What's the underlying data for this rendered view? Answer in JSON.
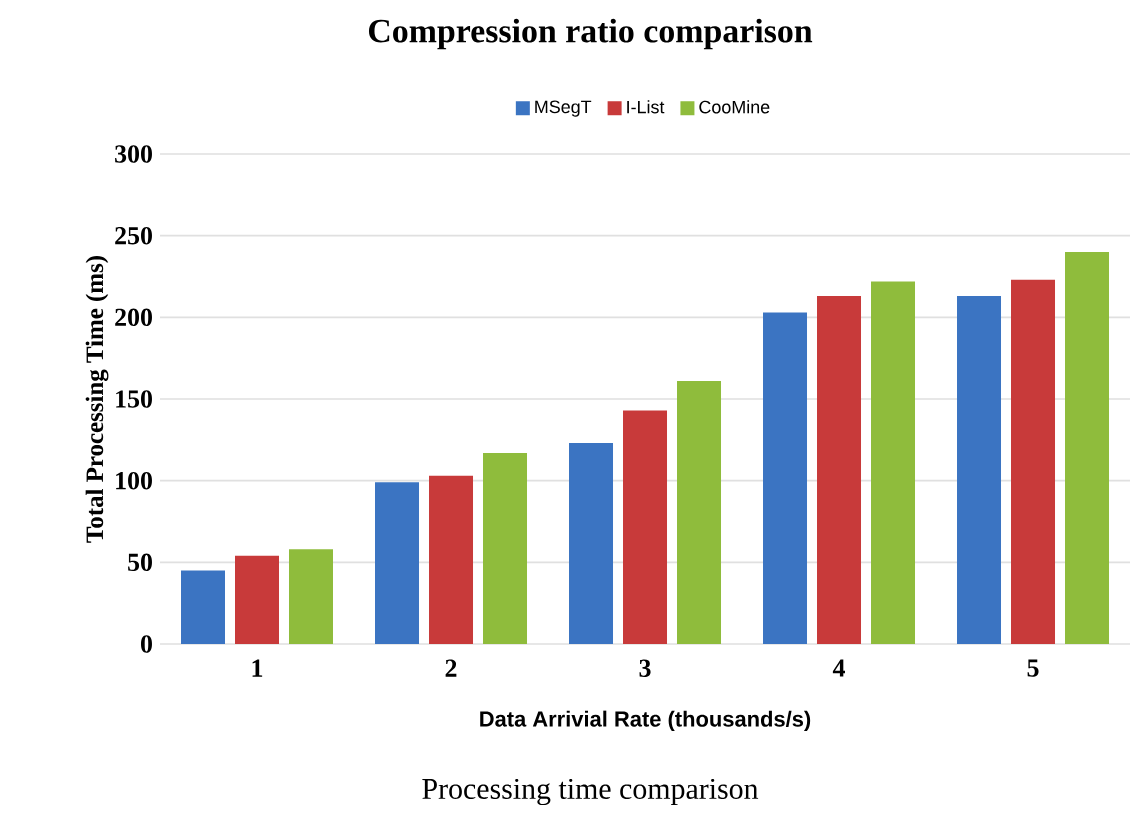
{
  "chart_data": {
    "type": "bar",
    "title": "Compression ratio comparison",
    "xlabel": "Data Arrivial Rate (thousands/s)",
    "ylabel": "Total Processing Time (ms)",
    "categories": [
      "1",
      "2",
      "3",
      "4",
      "5"
    ],
    "series": [
      {
        "name": "MSegT",
        "color": "#3b74c2",
        "values": [
          45,
          99,
          123,
          203,
          213
        ]
      },
      {
        "name": "I-List",
        "color": "#c83a3a",
        "values": [
          54,
          103,
          143,
          213,
          223
        ]
      },
      {
        "name": "CooMine",
        "color": "#8fbc3c",
        "values": [
          58,
          117,
          161,
          222,
          240
        ]
      }
    ],
    "ylim": [
      0,
      300
    ],
    "yticks": [
      0,
      50,
      100,
      150,
      200,
      250,
      300
    ],
    "grid": "y",
    "legend": "top",
    "annotations": [
      "Processing time comparison"
    ]
  }
}
